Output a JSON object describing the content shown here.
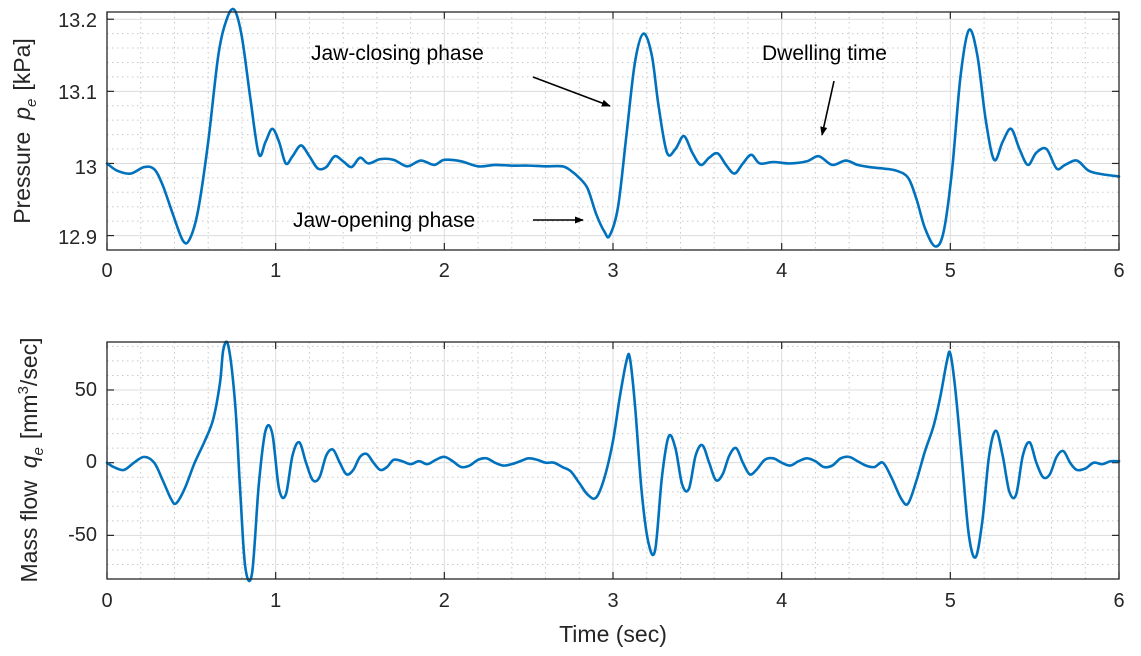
{
  "colors": {
    "line": "#0072bd",
    "axis": "#262626",
    "grid": "#dcdcdc"
  },
  "chart_data": [
    {
      "type": "line",
      "title": "",
      "xlabel": "",
      "ylabel": {
        "main": "Pressure",
        "symbol": "p",
        "subscript": "e",
        "unit": "[kPa]"
      },
      "xlim": [
        0,
        6
      ],
      "ylim": [
        12.88,
        13.21
      ],
      "x_ticks": [
        0,
        1,
        2,
        3,
        4,
        5,
        6
      ],
      "y_ticks": [
        12.9,
        13,
        13.1,
        13.2
      ],
      "x_tick_labels": [
        "0",
        "1",
        "2",
        "3",
        "4",
        "5",
        "6"
      ],
      "y_tick_labels": [
        "12.9",
        "13",
        "13.1",
        "13.2"
      ],
      "grid": true,
      "minor_grid": true,
      "series": [
        {
          "x": [
            0,
            0.06,
            0.14,
            0.22,
            0.28,
            0.33,
            0.39,
            0.45,
            0.49,
            0.54,
            0.6,
            0.66,
            0.71,
            0.755,
            0.8,
            0.85,
            0.9,
            0.94,
            0.98,
            1.02,
            1.06,
            1.1,
            1.15,
            1.2,
            1.25,
            1.3,
            1.35,
            1.4,
            1.45,
            1.5,
            1.55,
            1.62,
            1.7,
            1.78,
            1.86,
            1.94,
            2.0,
            2.1,
            2.2,
            2.3,
            2.4,
            2.5,
            2.6,
            2.7,
            2.75,
            2.8,
            2.85,
            2.9,
            2.95,
            2.98,
            3.03,
            3.08,
            3.13,
            3.18,
            3.23,
            3.27,
            3.32,
            3.37,
            3.42,
            3.47,
            3.52,
            3.57,
            3.62,
            3.67,
            3.72,
            3.77,
            3.82,
            3.87,
            3.95,
            4.05,
            4.15,
            4.22,
            4.3,
            4.38,
            4.45,
            4.52,
            4.6,
            4.68,
            4.75,
            4.8,
            4.85,
            4.91,
            4.96,
            5.01,
            5.06,
            5.11,
            5.16,
            5.21,
            5.26,
            5.31,
            5.36,
            5.41,
            5.46,
            5.51,
            5.57,
            5.63,
            5.68,
            5.75,
            5.82,
            5.9,
            6.0
          ],
          "y": [
            13.0,
            12.99,
            12.986,
            12.995,
            12.992,
            12.97,
            12.93,
            12.893,
            12.895,
            12.935,
            13.03,
            13.15,
            13.2,
            13.213,
            13.175,
            13.09,
            13.013,
            13.03,
            13.048,
            13.03,
            13.0,
            13.01,
            13.025,
            13.01,
            12.993,
            12.995,
            13.01,
            13.003,
            12.995,
            13.008,
            13.0,
            13.006,
            13.005,
            12.996,
            13.004,
            12.998,
            13.005,
            13.003,
            12.996,
            12.998,
            12.997,
            12.997,
            12.996,
            12.996,
            12.99,
            12.98,
            12.965,
            12.93,
            12.905,
            12.9,
            12.94,
            13.04,
            13.14,
            13.18,
            13.15,
            13.08,
            13.015,
            13.02,
            13.038,
            13.015,
            12.998,
            13.008,
            13.014,
            12.998,
            12.986,
            13.0,
            13.012,
            13.0,
            13.002,
            13.0,
            13.003,
            13.01,
            12.998,
            13.004,
            12.998,
            12.995,
            12.993,
            12.99,
            12.98,
            12.95,
            12.91,
            12.885,
            12.905,
            12.99,
            13.12,
            13.185,
            13.15,
            13.06,
            13.005,
            13.03,
            13.048,
            13.02,
            12.998,
            13.015,
            13.02,
            12.993,
            12.998,
            13.004,
            12.99,
            12.985,
            12.982
          ]
        }
      ],
      "annotations": [
        {
          "text": "Jaw-closing phase",
          "x": 2.37,
          "y": 13.17,
          "arrow_from": [
            2.52,
            13.115
          ],
          "arrow_to": [
            2.99,
            13.088
          ]
        },
        {
          "text": "Dwelling time",
          "x": 4.38,
          "y": 13.17,
          "arrow_from": [
            4.3,
            13.122
          ],
          "arrow_to": [
            4.23,
            13.055
          ]
        },
        {
          "text": "Jaw-opening phase",
          "x": 2.35,
          "y": 12.91,
          "arrow_from": [
            2.52,
            12.91
          ],
          "arrow_to": [
            2.8,
            12.91
          ]
        }
      ]
    },
    {
      "type": "line",
      "title": "",
      "xlabel": "Time (sec)",
      "ylabel": {
        "main": "Mass flow",
        "symbol": "q",
        "subscript": "e",
        "unit_prefix": "[mm",
        "unit_sup": "3",
        "unit_suffix": "/sec]"
      },
      "xlim": [
        0,
        6
      ],
      "ylim": [
        -80,
        83
      ],
      "x_ticks": [
        0,
        1,
        2,
        3,
        4,
        5,
        6
      ],
      "y_ticks": [
        -50,
        0,
        50
      ],
      "x_tick_labels": [
        "0",
        "1",
        "2",
        "3",
        "4",
        "5",
        "6"
      ],
      "y_tick_labels": [
        "-50",
        "0",
        "50"
      ],
      "grid": true,
      "minor_grid": true,
      "series": [
        {
          "x": [
            0,
            0.04,
            0.1,
            0.16,
            0.22,
            0.28,
            0.33,
            0.38,
            0.41,
            0.46,
            0.52,
            0.58,
            0.63,
            0.67,
            0.69,
            0.72,
            0.76,
            0.79,
            0.82,
            0.86,
            0.9,
            0.94,
            0.98,
            1.02,
            1.06,
            1.1,
            1.14,
            1.18,
            1.22,
            1.26,
            1.3,
            1.34,
            1.38,
            1.42,
            1.46,
            1.5,
            1.54,
            1.58,
            1.62,
            1.66,
            1.7,
            1.75,
            1.8,
            1.85,
            1.9,
            1.95,
            2.0,
            2.05,
            2.1,
            2.15,
            2.2,
            2.25,
            2.3,
            2.35,
            2.4,
            2.45,
            2.5,
            2.55,
            2.6,
            2.65,
            2.7,
            2.75,
            2.8,
            2.85,
            2.9,
            2.95,
            3.0,
            3.04,
            3.08,
            3.1,
            3.13,
            3.17,
            3.21,
            3.25,
            3.29,
            3.33,
            3.37,
            3.41,
            3.45,
            3.49,
            3.53,
            3.57,
            3.61,
            3.65,
            3.69,
            3.73,
            3.77,
            3.81,
            3.85,
            3.9,
            3.95,
            4.0,
            4.05,
            4.1,
            4.15,
            4.2,
            4.25,
            4.3,
            4.35,
            4.4,
            4.45,
            4.5,
            4.55,
            4.6,
            4.65,
            4.71,
            4.75,
            4.8,
            4.85,
            4.9,
            4.94,
            4.98,
            5.0,
            5.03,
            5.07,
            5.11,
            5.15,
            5.19,
            5.23,
            5.27,
            5.31,
            5.35,
            5.39,
            5.43,
            5.47,
            5.51,
            5.55,
            5.59,
            5.63,
            5.67,
            5.71,
            5.75,
            5.8,
            5.85,
            5.9,
            5.95,
            6.0
          ],
          "y": [
            0,
            -3,
            -5,
            0,
            4,
            0,
            -12,
            -25,
            -28,
            -18,
            0,
            15,
            30,
            55,
            78,
            80,
            40,
            -20,
            -72,
            -76,
            -15,
            22,
            20,
            -18,
            -22,
            5,
            14,
            0,
            -12,
            -10,
            5,
            9,
            0,
            -8,
            -5,
            4,
            6,
            0,
            -5,
            -3,
            2,
            1,
            -1,
            1,
            -1,
            2,
            4,
            1,
            -3,
            -2,
            2,
            3,
            0,
            -2,
            -1,
            1,
            3,
            2,
            0,
            0,
            -3,
            -6,
            -14,
            -22,
            -24,
            -10,
            15,
            45,
            70,
            72,
            40,
            -20,
            -55,
            -60,
            -10,
            18,
            10,
            -15,
            -18,
            5,
            12,
            0,
            -12,
            -8,
            5,
            10,
            0,
            -8,
            -5,
            2,
            3,
            0,
            -2,
            1,
            3,
            1,
            -3,
            -2,
            3,
            4,
            1,
            -2,
            -3,
            0,
            -10,
            -25,
            -28,
            -12,
            8,
            25,
            45,
            70,
            75,
            50,
            0,
            -50,
            -65,
            -40,
            5,
            22,
            5,
            -20,
            -22,
            5,
            14,
            0,
            -10,
            -8,
            4,
            8,
            0,
            -5,
            -4,
            0,
            -1,
            1,
            1
          ]
        }
      ]
    }
  ]
}
